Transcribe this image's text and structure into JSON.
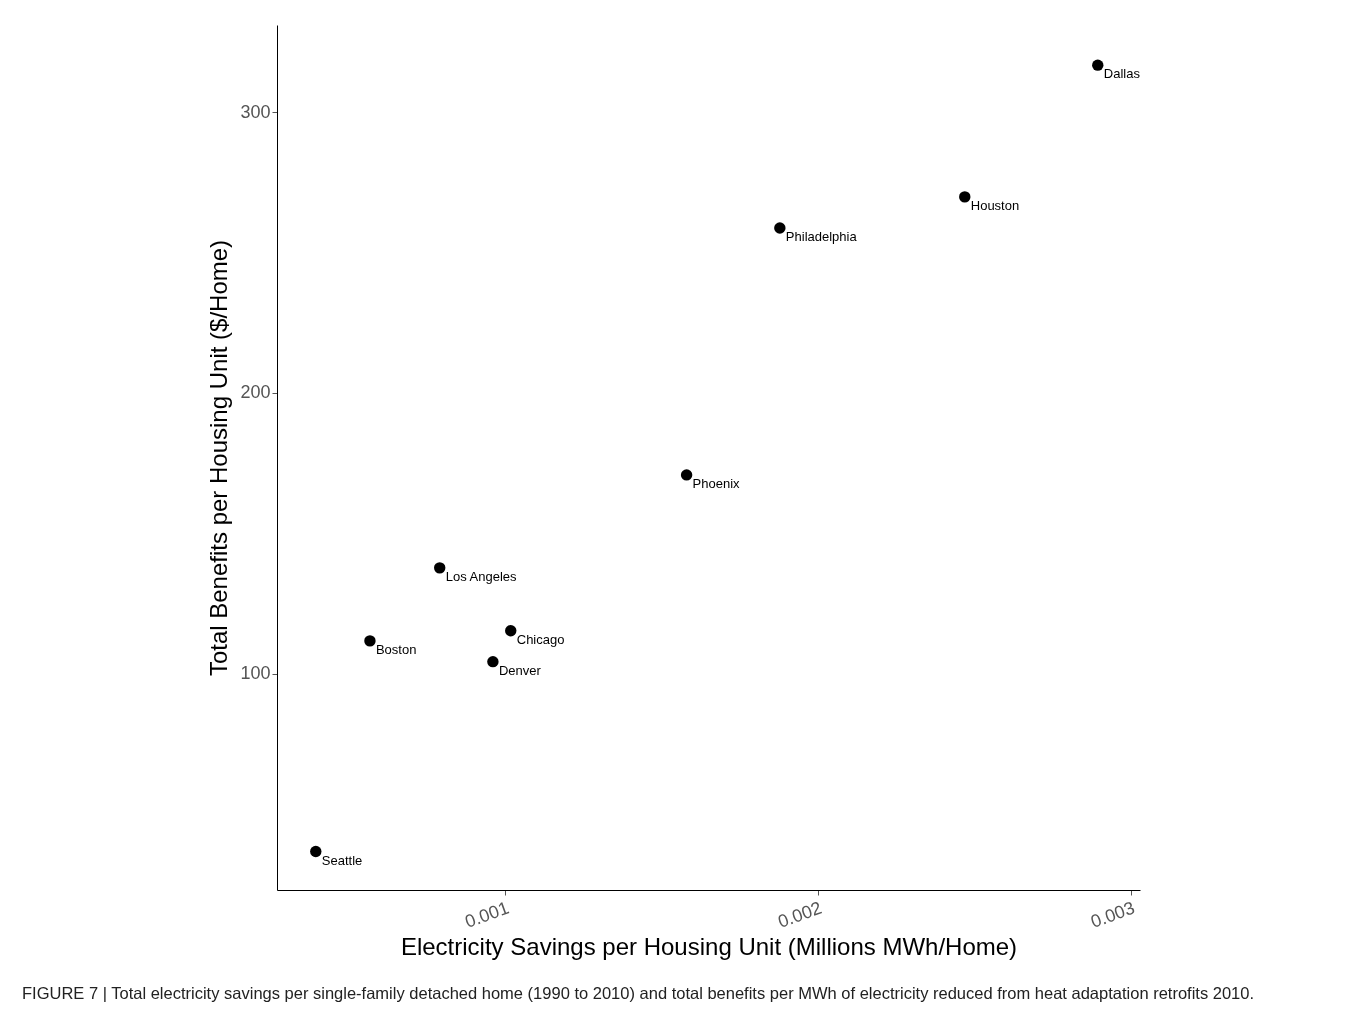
{
  "chart_data": {
    "type": "scatter",
    "xlabel": "Electricity Savings per Housing Unit (Millions MWh/Home)",
    "ylabel": "Total Benefits per Housing Unit ($/Home)",
    "x": [
      0.002895,
      0.00247,
      0.001879,
      0.001581,
      0.000792,
      0.001019,
      0.000569,
      0.000962,
      0.000396
    ],
    "series": [
      {
        "color": "#000000",
        "values": [
          316.7,
          269.8,
          258.7,
          170.8,
          137.7,
          115.3,
          111.7,
          104.3,
          36.7
        ]
      }
    ],
    "marker": "circle",
    "grid": false,
    "xlim": [
      0.000272,
      0.00303
    ],
    "ylim": [
      23,
      331
    ],
    "xticks": [
      0.001,
      0.002,
      0.003
    ],
    "yticks": [
      100,
      200,
      300
    ],
    "annotations": [
      {
        "text": "Dallas",
        "x": 0.002895,
        "y": 316.7
      },
      {
        "text": "Houston",
        "x": 0.00247,
        "y": 269.8
      },
      {
        "text": "Philadelphia",
        "x": 0.001879,
        "y": 258.7
      },
      {
        "text": "Phoenix",
        "x": 0.001581,
        "y": 170.8
      },
      {
        "text": "Los Angeles",
        "x": 0.000792,
        "y": 137.7
      },
      {
        "text": "Chicago",
        "x": 0.001019,
        "y": 115.3
      },
      {
        "text": "Boston",
        "x": 0.000569,
        "y": 111.7
      },
      {
        "text": "Denver",
        "x": 0.000962,
        "y": 104.3
      },
      {
        "text": "Seattle",
        "x": 0.000396,
        "y": 36.7
      },
      "FIGURE 7 | Total electricity savings per single-family detached home (1990 to 2010) and total benefits per MWh of electricity reduced from heat adaptation retrofits 2010."
    ]
  }
}
